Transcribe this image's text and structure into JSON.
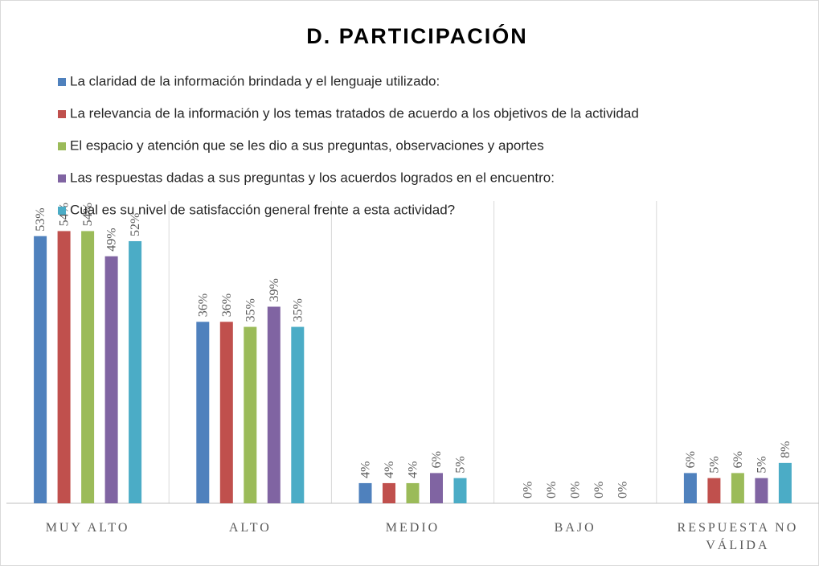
{
  "chart_data": {
    "type": "bar",
    "title": "D. PARTICIPACIÓN",
    "categories": [
      "MUY ALTO",
      "ALTO",
      "MEDIO",
      "BAJO",
      "RESPUESTA NO VÁLIDA"
    ],
    "series": [
      {
        "name": "La claridad de la información brindada y el lenguaje utilizado:",
        "color": "#4f81bd",
        "values": [
          53,
          36,
          4,
          0,
          6
        ],
        "value_labels": [
          "53%",
          "36%",
          "4%",
          "0%",
          "6%"
        ]
      },
      {
        "name": "La relevancia de la información y los temas tratados de acuerdo a los objetivos de la actividad",
        "color": "#c0504d",
        "values": [
          54,
          36,
          4,
          0,
          5
        ],
        "value_labels": [
          "54%",
          "36%",
          "4%",
          "0%",
          "5%"
        ]
      },
      {
        "name": "El espacio y atención que se les dio a sus preguntas, observaciones y aportes",
        "color": "#9bbb59",
        "values": [
          54,
          35,
          4,
          0,
          6
        ],
        "value_labels": [
          "54%",
          "35%",
          "4%",
          "0%",
          "6%"
        ]
      },
      {
        "name": "Las respuestas dadas a sus preguntas y los acuerdos logrados en el encuentro:",
        "color": "#8064a2",
        "values": [
          49,
          39,
          6,
          0,
          5
        ],
        "value_labels": [
          "49%",
          "39%",
          "6%",
          "0%",
          "5%"
        ]
      },
      {
        "name": "Cual es su nivel de satisfacción general frente a esta actividad?",
        "color": "#4bacc6",
        "values": [
          52,
          35,
          5,
          0,
          8
        ],
        "value_labels": [
          "52%",
          "35%",
          "5%",
          "0%",
          "8%"
        ]
      }
    ],
    "legend": "top-left",
    "grid": false
  }
}
